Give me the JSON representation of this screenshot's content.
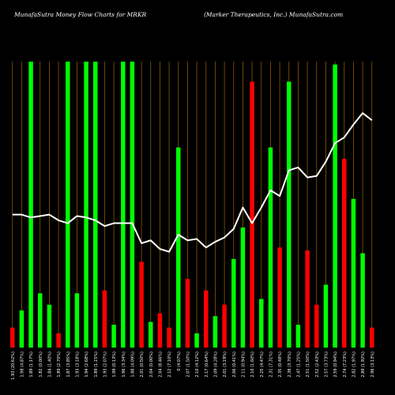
{
  "header": {
    "left_title": "MunafaSutra  Money Flow  Charts for MRKR",
    "right_title": "(Marker Therapeutics,  Inc.) MunafaSutra.com"
  },
  "colors": {
    "background": "#000000",
    "up": "#00ff00",
    "down": "#ff0000",
    "line": "#ffffff",
    "grid": "#8b5a00",
    "text": "#ffffff"
  },
  "chart_data": {
    "type": "bar",
    "title": "MunafaSutra  Money Flow  Charts for MRKR",
    "subtitle": "(Marker Therapeutics,  Inc.) MunafaSutra.com",
    "ylim": [
      0,
      100
    ],
    "grid": "vertical",
    "categories": [
      "1.93 (20.62%)",
      "1.98 (4.87%)",
      "1.89 (1.17%)",
      "1.82 (0.00%)",
      "1.84 (1.40%)",
      "1.89 (2.70%)",
      "1.87 (3.85%)",
      "1.93 (3.18%)",
      "1.94 (2.68%)",
      "1.89 (1.15%)",
      "1.93 (2.07%)",
      "1.99 (0.13%)",
      "1.96 (3.34%)",
      "1.88 (4.09%)",
      "2.01 (0.50%)",
      "2.04 (0.00%)",
      "2.04 (8.46%)",
      "2.12 (7.10%)",
      "0 (4.07%)",
      "2.07 (1.50%)",
      "2.10 (4.12%)",
      "2.17 (0.64%)",
      "2.09 (4.28%)",
      "2.01 (3.19%)",
      "2.06 (0.41%)",
      "2.11 (0.94%)",
      "2.10 (1.60%)",
      "2.25 (4.47%)",
      "2.31 (7.31%)",
      "2.35 (0.48%)",
      "2.38 (3.70%)",
      "2.47 (1.25%)",
      "2.51 (1.50%)",
      "2.52 (2.43%)",
      "2.57 (3.73%)",
      "2.59 (0.94%)",
      "2.74 (7.23%)",
      "2.82 (1.97%)",
      "2.89 (1.92%)",
      "2.96 (3.13%)"
    ],
    "series": [
      {
        "kind": "money-flow-bars",
        "values": [
          7,
          13,
          100,
          19,
          15,
          5,
          100,
          19,
          100,
          100,
          20,
          8,
          100,
          100,
          30,
          9,
          12,
          7,
          70,
          24,
          5,
          20,
          11,
          15,
          31,
          42,
          93,
          17,
          70,
          35,
          93,
          8,
          34,
          15,
          22,
          99,
          66,
          52,
          33,
          7
        ],
        "directions": [
          "down",
          "up",
          "up",
          "up",
          "up",
          "down",
          "up",
          "up",
          "up",
          "up",
          "down",
          "up",
          "up",
          "up",
          "down",
          "up",
          "down",
          "down",
          "up",
          "down",
          "up",
          "down",
          "up",
          "down",
          "up",
          "up",
          "down",
          "up",
          "up",
          "down",
          "up",
          "up",
          "down",
          "down",
          "up",
          "up",
          "down",
          "up",
          "up",
          "down"
        ]
      },
      {
        "kind": "close-line",
        "values": [
          46.5,
          46.5,
          45.5,
          46,
          46.5,
          44.5,
          43.5,
          46,
          45.5,
          44.5,
          42.5,
          43.5,
          43.5,
          43.5,
          36.5,
          37.5,
          34.5,
          33.5,
          39.5,
          37.5,
          38,
          35,
          37,
          38.5,
          41.5,
          49,
          43.5,
          49,
          55,
          53,
          62,
          63,
          59.5,
          60,
          65,
          71.5,
          73.5,
          78,
          82,
          79.5
        ]
      }
    ]
  }
}
